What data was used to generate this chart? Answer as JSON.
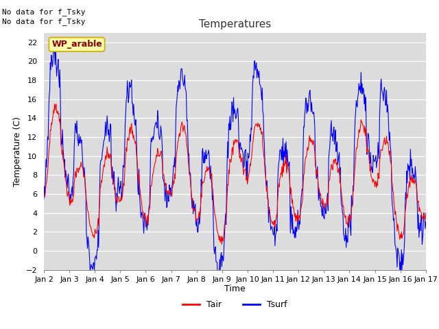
{
  "title": "Temperatures",
  "xlabel": "Time",
  "ylabel": "Temperature (C)",
  "ylim": [
    -2,
    23
  ],
  "yticks": [
    -2,
    0,
    2,
    4,
    6,
    8,
    10,
    12,
    14,
    16,
    18,
    20,
    22
  ],
  "xtick_labels": [
    "Jan 2",
    "Jan 3",
    "Jan 4",
    "Jan 5",
    "Jan 6",
    "Jan 7",
    "Jan 8",
    "Jan 9",
    "Jan 10",
    "Jan 11",
    "Jan 12",
    "Jan 13",
    "Jan 14",
    "Jan 15",
    "Jan 16",
    "Jan 17"
  ],
  "top_left_text": [
    "No data for f_Tsky",
    "No data for f_Tsky"
  ],
  "box_label": "WP_arable",
  "legend_entries": [
    "Tair",
    "Tsurf"
  ],
  "legend_colors": [
    "red",
    "blue"
  ],
  "tair_color": "red",
  "tsurf_color": "blue",
  "background_color": "#dcdcdc",
  "fig_background": "#ffffff",
  "title_fontsize": 11,
  "axis_fontsize": 9,
  "tick_fontsize": 8
}
